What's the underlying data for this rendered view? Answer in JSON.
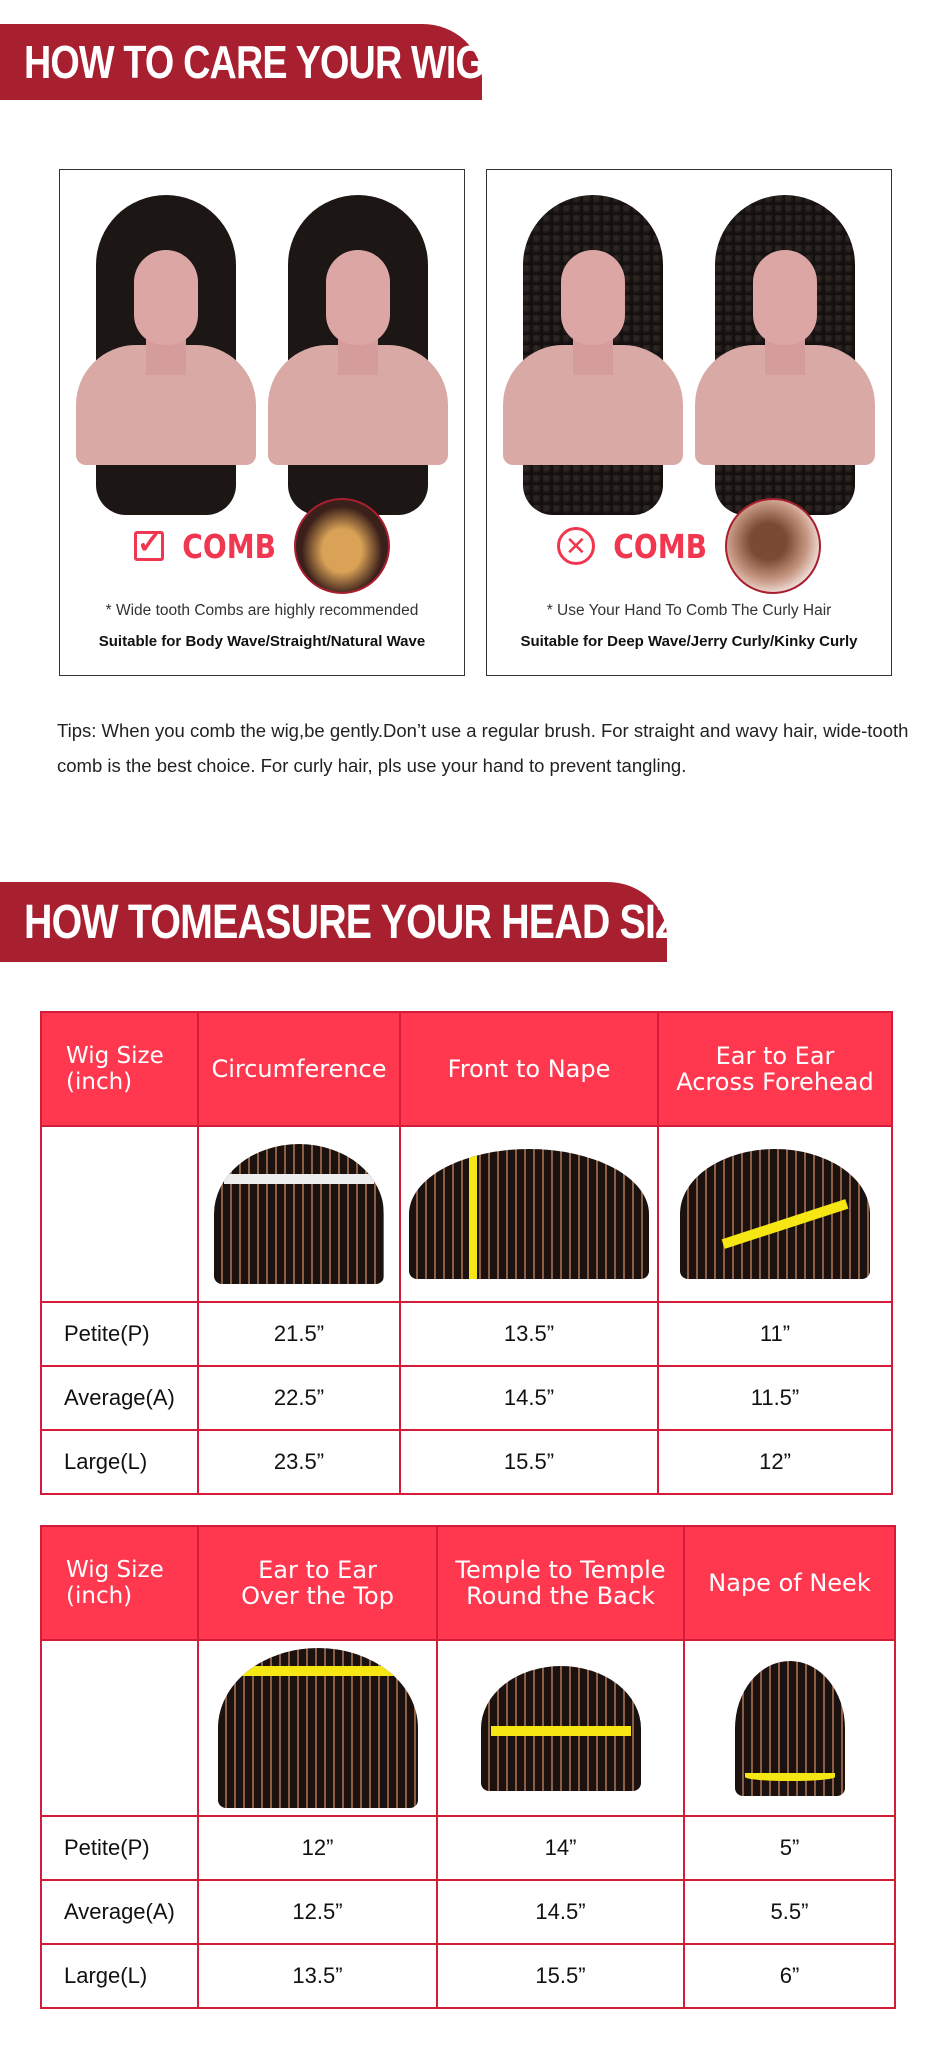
{
  "care_section": {
    "title": "HOW TO CARE YOUR WIG",
    "panels": [
      {
        "comb_label": "COMB",
        "comb_status": "allowed",
        "note": "* Wide tooth Combs are highly recommended",
        "suitable": "Suitable for Body Wave/Straight/Natural Wave",
        "comb_icon": "checkbox-check-icon"
      },
      {
        "comb_label": "COMB",
        "comb_status": "not-allowed",
        "note": "* Use Your Hand To Comb The Curly Hair",
        "suitable": "Suitable for Deep Wave/Jerry Curly/Kinky Curly",
        "comb_icon": "circle-x-icon"
      }
    ],
    "tips": "Tips: When you comb the wig,be gently.Don’t use a regular brush. For straight and wavy hair, wide-tooth comb is the best choice. For curly hair, pls use your hand to prevent tangling."
  },
  "measure_section": {
    "title": "HOW TOMEASURE YOUR HEAD SIZE",
    "tables": [
      {
        "headers": [
          "Wig Size\n(inch)",
          "Circumference",
          "Front to Nape",
          "Ear to Ear\nAcross Forehead"
        ],
        "rows": [
          [
            "Petite(P)",
            "21.5”",
            "13.5”",
            "11”"
          ],
          [
            "Average(A)",
            "22.5”",
            "14.5”",
            "11.5”"
          ],
          [
            "Large(L)",
            "23.5”",
            "15.5”",
            "12”"
          ]
        ]
      },
      {
        "headers": [
          "Wig Size\n(inch)",
          "Ear to Ear\nOver the Top",
          "Temple to Temple\nRound the Back",
          "Nape of Neek"
        ],
        "rows": [
          [
            "Petite(P)",
            "12”",
            "14”",
            "5”"
          ],
          [
            "Average(A)",
            "12.5”",
            "14.5”",
            "5.5”"
          ],
          [
            "Large(L)",
            "13.5”",
            "15.5”",
            "6”"
          ]
        ]
      }
    ]
  },
  "colors": {
    "banner": "#a8202f",
    "table_header": "#ff384f",
    "table_border": "#d41c3a",
    "comb_accent": "#f0374f",
    "tape": "#f5e614"
  }
}
